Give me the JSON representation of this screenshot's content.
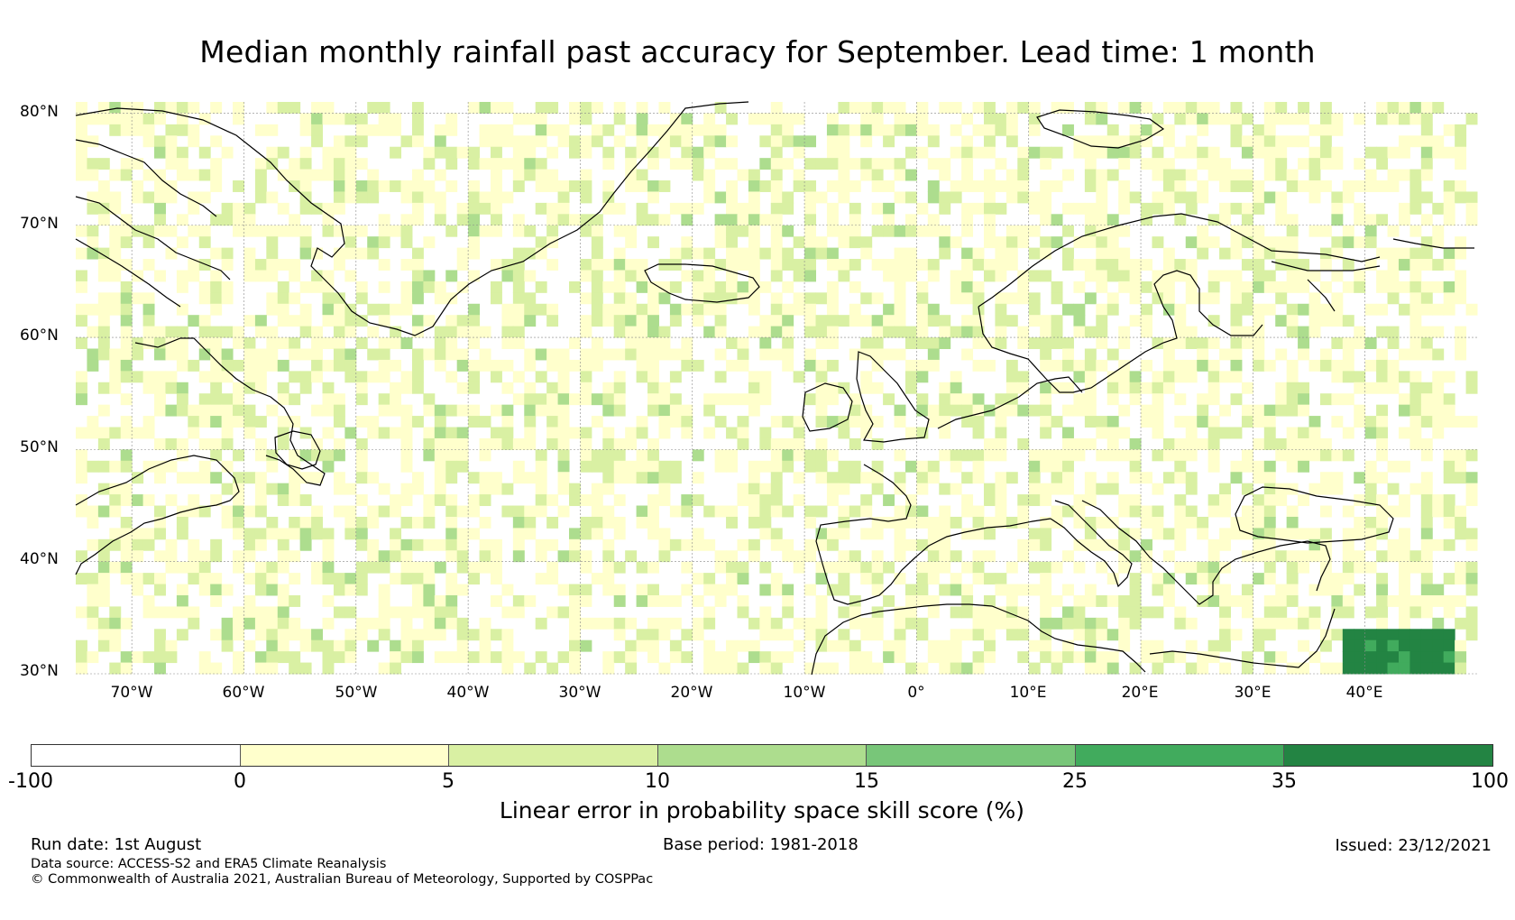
{
  "title": "Median monthly rainfall past accuracy for September. Lead time: 1 month",
  "map": {
    "latitude_labels": [
      "80°N",
      "70°N",
      "60°N",
      "50°N",
      "40°N",
      "30°N"
    ],
    "longitude_labels": [
      "70°W",
      "60°W",
      "50°W",
      "40°W",
      "30°W",
      "20°W",
      "10°W",
      "0°",
      "10°E",
      "20°E",
      "30°E",
      "40°E"
    ],
    "extent": {
      "lon_min": -75,
      "lon_max": 50,
      "lat_min": 30,
      "lat_max": 81
    },
    "grid_lines": true,
    "coastlines": true,
    "features": [
      "Greenland",
      "Iceland",
      "Scandinavia",
      "British Isles",
      "Iberia",
      "Mediterranean",
      "Black Sea",
      "North Africa",
      "Eastern North America"
    ],
    "high_skill_region": {
      "description": "strong positive skill (35 to 100) patch",
      "lon_range": [
        38,
        48
      ],
      "lat_range": [
        30,
        34
      ]
    }
  },
  "colorbar": {
    "label": "Linear error in probability space skill score (%)",
    "ticks": [
      "-100",
      "0",
      "5",
      "10",
      "15",
      "25",
      "35",
      "100"
    ],
    "colors": [
      "#ffffff",
      "#ffffcc",
      "#d9f0a3",
      "#addd8e",
      "#78c679",
      "#41ab5d",
      "#238443"
    ]
  },
  "footer": {
    "run_date": "Run date: 1st August",
    "base_period": "Base period: 1981-2018",
    "issued": "Issued: 23/12/2021",
    "data_source": "Data source: ACCESS-S2 and ERA5 Climate Reanalysis",
    "copyright": "© Commonwealth of Australia 2021, Australian Bureau of Meteorology, Supported by COSPPac"
  }
}
